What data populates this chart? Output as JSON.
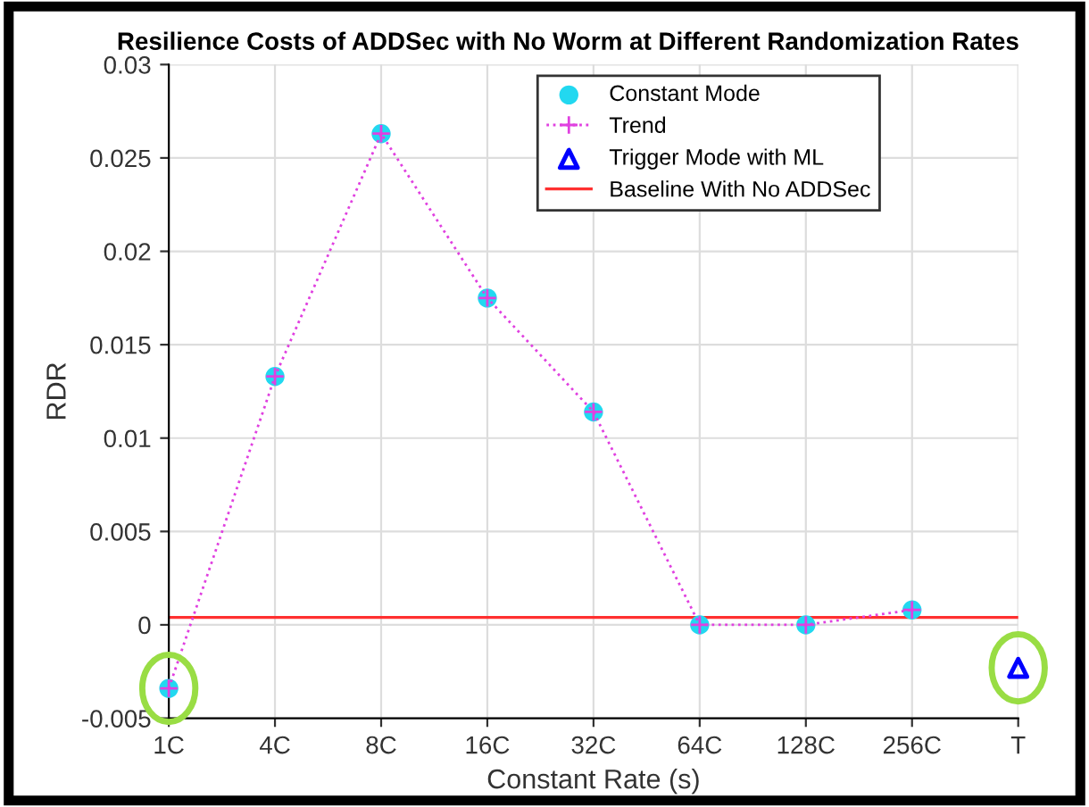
{
  "chart_data": {
    "type": "line",
    "title": "Resilience Costs of ADDSec with No Worm at Different Randomization Rates",
    "xlabel": "Constant Rate (s)",
    "ylabel": "RDR",
    "categories": [
      "1C",
      "4C",
      "8C",
      "16C",
      "32C",
      "64C",
      "128C",
      "256C",
      "T"
    ],
    "series": [
      {
        "name": "Constant Mode",
        "type": "scatter",
        "color": "#22d8f0",
        "marker": "circle",
        "values": [
          -0.0034,
          0.0133,
          0.0263,
          0.0175,
          0.0114,
          0.0,
          0.0,
          0.0008,
          null
        ]
      },
      {
        "name": "Trend",
        "color": "#e040e0",
        "marker": "cross",
        "line_style": "dotted",
        "values": [
          -0.0034,
          0.0133,
          0.0263,
          0.0175,
          0.0114,
          0.0,
          0.0,
          0.0008,
          null
        ]
      },
      {
        "name": "Trigger Mode with ML",
        "type": "scatter",
        "color": "#0000ff",
        "marker": "triangle",
        "values": [
          null,
          null,
          null,
          null,
          null,
          null,
          null,
          null,
          -0.0023
        ]
      }
    ],
    "ref_lines": [
      {
        "axis": "y",
        "value": 0.0004,
        "label": "Baseline With No ADDSec",
        "color": "#ff3030",
        "line_style": "solid"
      }
    ],
    "ylim": [
      -0.005,
      0.03
    ],
    "yticks": [
      {
        "value": -0.005,
        "label": "-0.005"
      },
      0,
      0.005,
      0.01,
      0.015,
      0.02,
      0.025,
      0.03
    ],
    "grid": true,
    "legend": "top right"
  }
}
